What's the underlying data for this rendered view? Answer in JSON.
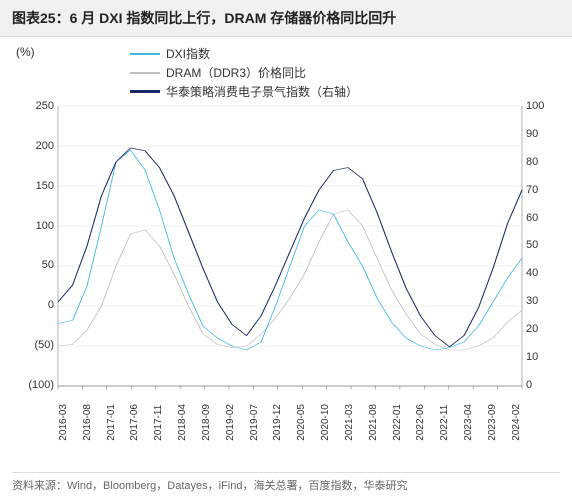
{
  "title": "图表25：6 月 DXI 指数同比上行，DRAM 存储器价格同比回升",
  "y_unit": "(%)",
  "legend": {
    "series1": {
      "label": "DXI指数",
      "color": "#3fb8e8"
    },
    "series2": {
      "label": "DRAM（DDR3）价格同比",
      "color": "#bfbfbf"
    },
    "series3": {
      "label": "华泰策略消费电子景气指数（右轴）",
      "color": "#1a2a66"
    }
  },
  "chart": {
    "type": "line",
    "background_color": "#ffffff",
    "grid_color": "#d9d9d9",
    "axis_color": "#333333",
    "line_width": 2,
    "left_axis": {
      "min": -100,
      "max": 250,
      "step": 50,
      "ticks": [
        "250",
        "200",
        "150",
        "100",
        "50",
        "0",
        "(50)",
        "(100)"
      ]
    },
    "right_axis": {
      "min": 0,
      "max": 100,
      "step": 10,
      "ticks": [
        "100",
        "90",
        "80",
        "70",
        "60",
        "50",
        "40",
        "30",
        "20",
        "10",
        "0"
      ]
    },
    "x_labels": [
      "2016-03",
      "2016-08",
      "2017-01",
      "2017-06",
      "2017-11",
      "2018-04",
      "2018-09",
      "2019-02",
      "2019-07",
      "2019-12",
      "2020-05",
      "2020-10",
      "2021-03",
      "2021-08",
      "2022-01",
      "2022-06",
      "2022-11",
      "2023-04",
      "2023-09",
      "2024-02"
    ],
    "series1": {
      "axis": "left",
      "color": "#3fb8e8",
      "values": [
        -22,
        -18,
        25,
        100,
        180,
        195,
        170,
        120,
        60,
        15,
        -25,
        -40,
        -50,
        -55,
        -45,
        0,
        50,
        100,
        120,
        115,
        80,
        50,
        10,
        -20,
        -40,
        -50,
        -55,
        -52,
        -45,
        -25,
        5,
        35,
        60
      ]
    },
    "series2": {
      "axis": "left",
      "color": "#bfbfbf",
      "values": [
        -50,
        -48,
        -30,
        0,
        50,
        90,
        95,
        75,
        40,
        0,
        -35,
        -48,
        -52,
        -50,
        -35,
        -15,
        10,
        40,
        80,
        115,
        120,
        100,
        60,
        20,
        -10,
        -35,
        -48,
        -55,
        -55,
        -50,
        -40,
        -20,
        -5
      ]
    },
    "series3": {
      "axis": "right",
      "color": "#1a2a66",
      "values": [
        30,
        36,
        50,
        68,
        80,
        85,
        84,
        78,
        68,
        55,
        42,
        30,
        22,
        18,
        25,
        36,
        48,
        60,
        70,
        77,
        78,
        74,
        62,
        48,
        35,
        25,
        18,
        14,
        18,
        28,
        42,
        58,
        70
      ]
    }
  },
  "source": "资料来源：Wind，Bloomberg，Datayes，iFind，海关总署，百度指数，华泰研究"
}
